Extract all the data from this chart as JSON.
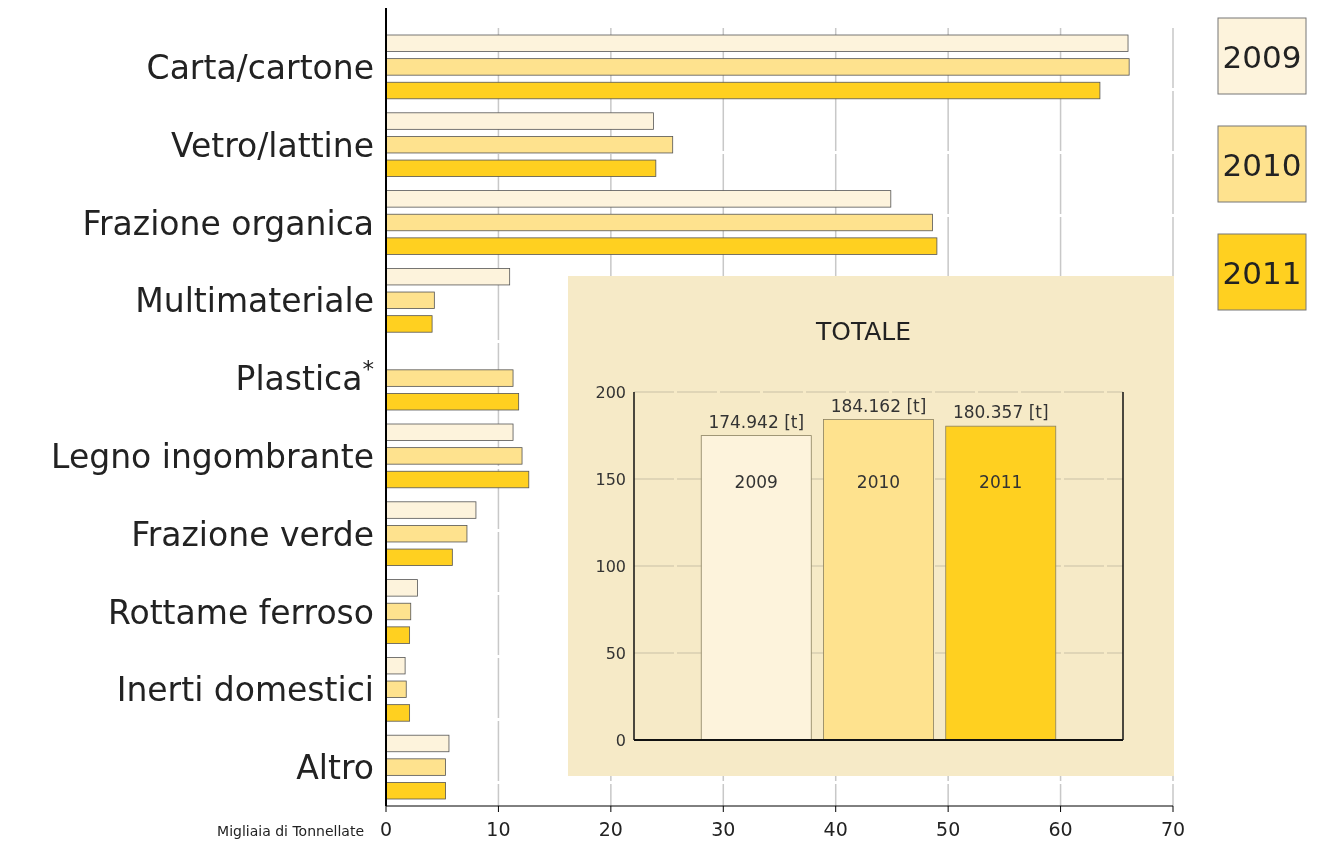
{
  "chart_data": [
    {
      "type": "bar",
      "orientation": "horizontal",
      "xlabel": "Migliaia di Tonnellate",
      "categories": [
        "Carta/cartone",
        "Vetro/lattine",
        "Frazione organica",
        "Multimateriale",
        "Plastica$^{*}$",
        "Legno ingombrante",
        "Frazione verde",
        "Rottame ferroso",
        "Inerti domestici",
        "Altro"
      ],
      "series": [
        {
          "name": "2009",
          "color": "#fdf3dc",
          "values": [
            66.0,
            23.8,
            44.9,
            11.0,
            null,
            11.3,
            8.0,
            2.8,
            1.7,
            5.6
          ]
        },
        {
          "name": "2010",
          "color": "#fee28e",
          "values": [
            66.1,
            25.5,
            48.6,
            4.3,
            11.3,
            12.1,
            7.2,
            2.2,
            1.8,
            5.3
          ]
        },
        {
          "name": "2011",
          "color": "#ffd020",
          "values": [
            63.5,
            24.0,
            49.0,
            4.1,
            11.8,
            12.7,
            5.9,
            2.1,
            2.1,
            5.3
          ]
        }
      ],
      "xlim": [
        0,
        70
      ],
      "xticks": [
        0,
        10,
        20,
        30,
        40,
        50,
        60,
        70
      ],
      "grid": "x",
      "legend": "right"
    },
    {
      "type": "bar",
      "title": "TOTALE",
      "categories": [
        "2009",
        "2010",
        "2011"
      ],
      "values": [
        174.942,
        184.162,
        180.357
      ],
      "colors": [
        "#fdf3dc",
        "#fee28e",
        "#ffd020"
      ],
      "value_labels": [
        "174.942 [t]",
        "184.162 [t]",
        "180.357 [t]"
      ],
      "ylim": [
        0,
        200
      ],
      "yticks": [
        0,
        50,
        100,
        150,
        200
      ],
      "grid": "y"
    }
  ]
}
